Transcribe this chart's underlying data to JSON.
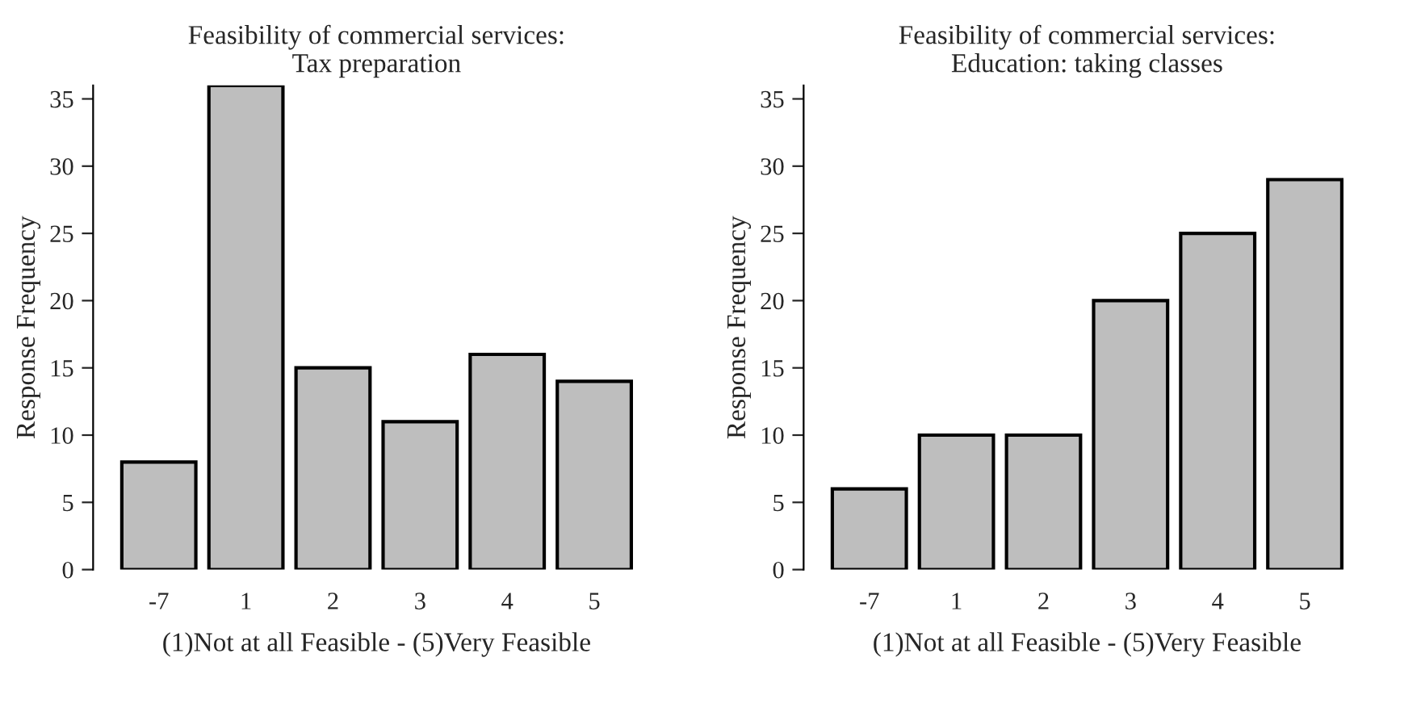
{
  "chart_data": [
    {
      "type": "bar",
      "title": "Feasibility of commercial services:\nTax preparation",
      "xlabel": "(1)Not at all Feasible - (5)Very Feasible",
      "ylabel": "Response Frequency",
      "categories": [
        "-7",
        "1",
        "2",
        "3",
        "4",
        "5"
      ],
      "values": [
        8,
        36,
        15,
        11,
        16,
        14
      ],
      "color": "#bebebe",
      "ylim": [
        0,
        36
      ],
      "yticks": [
        0,
        5,
        10,
        15,
        20,
        25,
        30,
        35
      ],
      "grid": false
    },
    {
      "type": "bar",
      "title": "Feasibility of commercial services:\nEducation: taking classes",
      "xlabel": "(1)Not at all Feasible - (5)Very Feasible",
      "ylabel": "Response Frequency",
      "categories": [
        "-7",
        "1",
        "2",
        "3",
        "4",
        "5"
      ],
      "values": [
        6,
        10,
        10,
        20,
        25,
        29
      ],
      "color": "#bebebe",
      "ylim": [
        0,
        36
      ],
      "yticks": [
        0,
        5,
        10,
        15,
        20,
        25,
        30,
        35
      ],
      "grid": false
    }
  ]
}
